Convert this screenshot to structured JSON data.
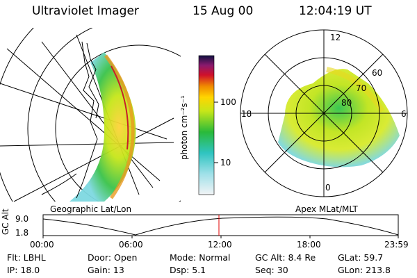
{
  "header": {
    "instrument": "Ultraviolet Imager",
    "date": "15 Aug 00",
    "time": "12:04:19 UT"
  },
  "geo_panel": {
    "label": "Geographic Lat/Lon"
  },
  "colorbar": {
    "unit_label": "photon cm⁻²s⁻¹",
    "ticks": [
      "100",
      "10"
    ]
  },
  "polar_panel": {
    "label": "Apex MLat/MLT",
    "mlt_labels": [
      "12",
      "18",
      "6",
      "0"
    ],
    "mlat_labels": [
      "60",
      "70",
      "80"
    ]
  },
  "altitude_plot": {
    "axis_label": "GC Alt",
    "y_ticks": [
      "9.0",
      "1.8"
    ],
    "x_ticks": [
      "00:00",
      "06:00",
      "12:00",
      "18:00",
      "23:59"
    ],
    "marker_color": "#e00000"
  },
  "info": {
    "filter": "Flt: LBHL",
    "door": "Door: Open",
    "mode": "Mode: Normal",
    "gc_alt": "GC Alt: 8.4 Re",
    "glat": "GLat:  59.7",
    "ip": "IP: 18.0",
    "gain": "Gain: 13",
    "dsp": "Dsp:     5.1",
    "seq": "Seq: 30",
    "glon": "GLon: 213.8"
  }
}
